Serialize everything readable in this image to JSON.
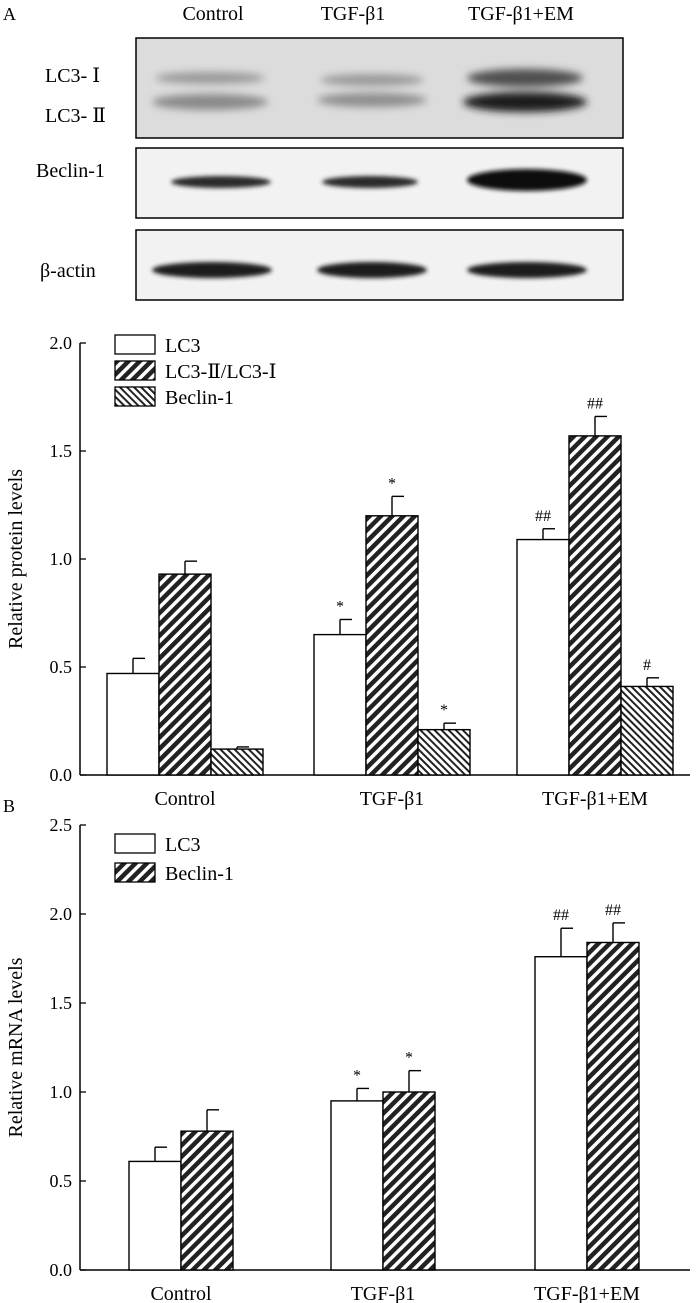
{
  "panelA": {
    "panel_label": "A",
    "blot": {
      "lanes": [
        "Control",
        "TGF-β1",
        "TGF-β1+EM"
      ],
      "lc3_labels": [
        "LC3- Ⅰ",
        "LC3- Ⅱ"
      ],
      "beclin_label": "Beclin-1",
      "actin_label": "β-actin"
    }
  },
  "panelB": {
    "panel_label": "B"
  },
  "chart_data": [
    {
      "type": "bar",
      "title": "",
      "xlabel": "",
      "ylabel": "Relative protein levels",
      "categories": [
        "Control",
        "TGF-β1",
        "TGF-β1+EM"
      ],
      "ylim": [
        0,
        2.0
      ],
      "yticks": [
        "0.0",
        "0.5",
        "1.0",
        "1.5",
        "2.0"
      ],
      "series": [
        {
          "name": "LC3",
          "pattern": "open",
          "values": [
            0.47,
            0.65,
            1.09
          ],
          "errors": [
            0.07,
            0.07,
            0.05
          ],
          "annotations": [
            "",
            "*",
            "##"
          ]
        },
        {
          "name": "LC3-Ⅱ/LC3-Ⅰ",
          "pattern": "hatch-wide",
          "values": [
            0.93,
            1.2,
            1.57
          ],
          "errors": [
            0.06,
            0.09,
            0.09
          ],
          "annotations": [
            "",
            "*",
            "##"
          ]
        },
        {
          "name": "Beclin-1",
          "pattern": "hatch-narrow",
          "values": [
            0.12,
            0.21,
            0.41
          ],
          "errors": [
            0.01,
            0.03,
            0.04
          ],
          "annotations": [
            "",
            "*",
            "#"
          ]
        }
      ]
    },
    {
      "type": "bar",
      "title": "",
      "xlabel": "",
      "ylabel": "Relative mRNA levels",
      "categories": [
        "Control",
        "TGF-β1",
        "TGF-β1+EM"
      ],
      "ylim": [
        0,
        2.5
      ],
      "yticks": [
        "0.0",
        "0.5",
        "1.0",
        "1.5",
        "2.0",
        "2.5"
      ],
      "series": [
        {
          "name": "LC3",
          "pattern": "open",
          "values": [
            0.61,
            0.95,
            1.76
          ],
          "errors": [
            0.08,
            0.07,
            0.16
          ],
          "annotations": [
            "",
            "*",
            "##"
          ]
        },
        {
          "name": "Beclin-1",
          "pattern": "hatch-wide",
          "values": [
            0.78,
            1.0,
            1.84
          ],
          "errors": [
            0.12,
            0.12,
            0.11
          ],
          "annotations": [
            "",
            "*",
            "##"
          ]
        }
      ]
    }
  ]
}
